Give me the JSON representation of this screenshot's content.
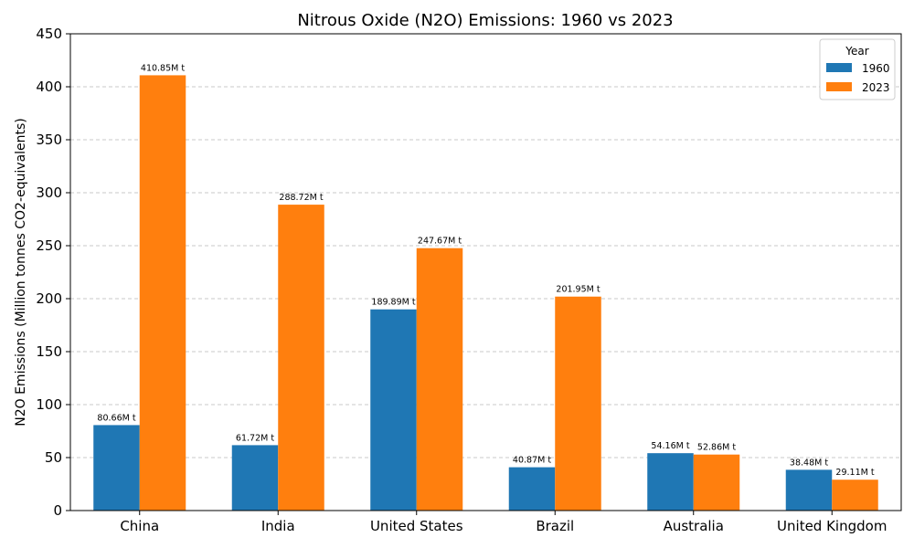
{
  "chart_data": {
    "type": "bar",
    "title": "Nitrous Oxide (N2O) Emissions: 1960 vs 2023",
    "xlabel": "",
    "ylabel": "N2O Emissions (Million tonnes CO2-equivalents)",
    "ylim": [
      0,
      450
    ],
    "yticks": [
      0,
      50,
      100,
      150,
      200,
      250,
      300,
      350,
      400,
      450
    ],
    "grid": "y-dashed",
    "legend": {
      "title": "Year",
      "position": "top-right"
    },
    "categories": [
      "China",
      "India",
      "United States",
      "Brazil",
      "Australia",
      "United Kingdom"
    ],
    "series": [
      {
        "name": "1960",
        "color": "#1f77b4",
        "values": [
          80.66,
          61.72,
          189.89,
          40.87,
          54.16,
          38.48
        ],
        "labels": [
          "80.66M t",
          "61.72M t",
          "189.89M t",
          "40.87M t",
          "54.16M t",
          "38.48M t"
        ]
      },
      {
        "name": "2023",
        "color": "#ff7f0e",
        "values": [
          410.85,
          288.72,
          247.67,
          201.95,
          52.86,
          29.11
        ],
        "labels": [
          "410.85M t",
          "288.72M t",
          "247.67M t",
          "201.95M t",
          "52.86M t",
          "29.11M t"
        ]
      }
    ]
  }
}
